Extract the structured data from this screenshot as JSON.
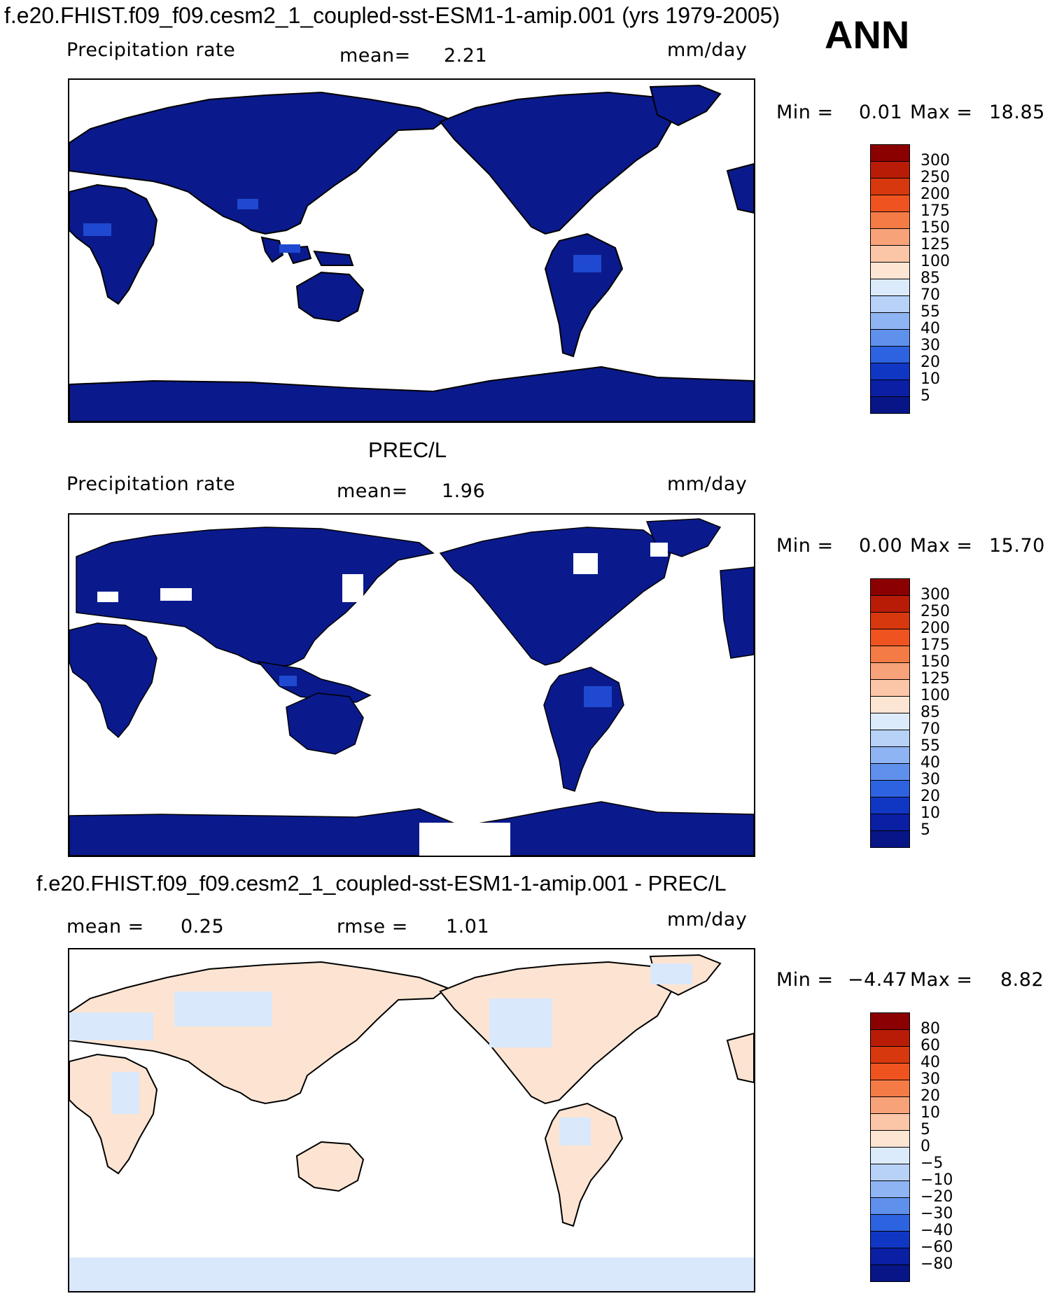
{
  "header": {
    "title": "f.e20.FHIST.f09_f09.cesm2_1_coupled-sst-ESM1-1-amip.001 (yrs 1979-2005)",
    "season": "ANN"
  },
  "colors": {
    "land_deep_blue": "#0a1a8c",
    "ocean": "#ffffff",
    "diff_positive": "#fde4d2",
    "diff_negative": "#d9e8fb"
  },
  "panels": [
    {
      "subtitle": "",
      "variable": "Precipitation rate",
      "stat_label": "mean=",
      "stat_value": "2.21",
      "units": "mm/day",
      "min_label": "Min =",
      "min_value": "0.01",
      "max_label": "Max =",
      "max_value": "18.85"
    },
    {
      "subtitle": "PREC/L",
      "variable": "Precipitation rate",
      "stat_label": "mean=",
      "stat_value": "1.96",
      "units": "mm/day",
      "min_label": "Min =",
      "min_value": "0.00",
      "max_label": "Max =",
      "max_value": "15.70"
    },
    {
      "subtitle": "f.e20.FHIST.f09_f09.cesm2_1_coupled-sst-ESM1-1-amip.001 - PREC/L",
      "stat_label": "mean =",
      "stat_value": "0.25",
      "rmse_label": "rmse =",
      "rmse_value": "1.01",
      "units": "mm/day",
      "min_label": "Min =",
      "min_value": "−4.47",
      "max_label": "Max =",
      "max_value": "8.82"
    }
  ],
  "colorbars": {
    "absolute": {
      "labels": [
        "300",
        "250",
        "200",
        "175",
        "150",
        "125",
        "100",
        "85",
        "70",
        "55",
        "40",
        "30",
        "20",
        "10",
        "5"
      ],
      "colors": [
        "#8b0000",
        "#b81c07",
        "#d8380e",
        "#ef5420",
        "#f47b46",
        "#f8a27a",
        "#fbc6a8",
        "#fde5d3",
        "#dcebfb",
        "#b7d1f7",
        "#8fb4f3",
        "#5f90ec",
        "#2d63e0",
        "#1036c4",
        "#0a1fa4",
        "#071586"
      ]
    },
    "difference": {
      "labels": [
        "80",
        "60",
        "40",
        "30",
        "20",
        "10",
        "5",
        "0",
        "−5",
        "−10",
        "−20",
        "−30",
        "−40",
        "−60",
        "−80"
      ],
      "colors": [
        "#8b0000",
        "#b81c07",
        "#d8380e",
        "#ef5420",
        "#f47b46",
        "#f8a27a",
        "#fbc6a8",
        "#fde5d3",
        "#dcebfb",
        "#b7d1f7",
        "#8fb4f3",
        "#5f90ec",
        "#2d63e0",
        "#1036c4",
        "#0a1fa4",
        "#071586"
      ]
    }
  }
}
